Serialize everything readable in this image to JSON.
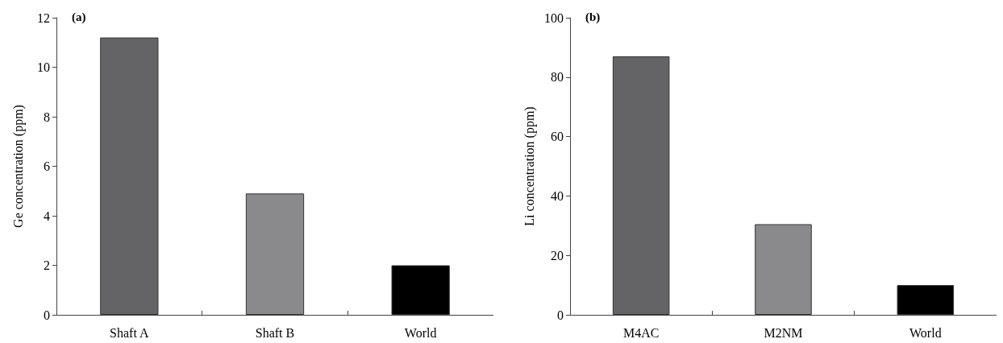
{
  "chart_data": [
    {
      "type": "bar",
      "title": "(a)",
      "ylabel": "Ge concentration (ppm)",
      "categories": [
        "Shaft A",
        "Shaft B",
        "World"
      ],
      "values": [
        11.2,
        4.9,
        2.0
      ],
      "colors": [
        "#646466",
        "#8a8a8c",
        "#000000"
      ],
      "ylim": [
        0,
        12
      ],
      "yticks": [
        0,
        2,
        4,
        6,
        8,
        10,
        12
      ],
      "grid": false
    },
    {
      "type": "bar",
      "title": "(b)",
      "ylabel": "Li concentration (ppm)",
      "categories": [
        "M4AC",
        "M2NM",
        "World"
      ],
      "values": [
        87,
        30.5,
        10
      ],
      "colors": [
        "#646466",
        "#8a8a8c",
        "#000000"
      ],
      "ylim": [
        0,
        100
      ],
      "yticks": [
        0,
        20,
        40,
        60,
        80,
        100
      ],
      "grid": false
    }
  ]
}
